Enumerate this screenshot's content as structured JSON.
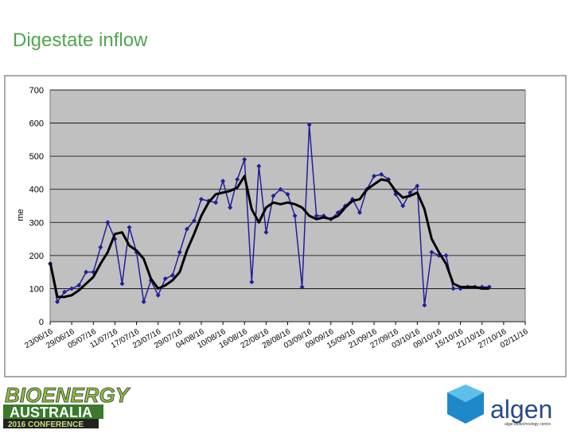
{
  "slide_title": "Digestate inflow",
  "chart_data": {
    "type": "line",
    "y_label": "me",
    "categories": [
      "23/06/16",
      null,
      null,
      "29/06/16",
      null,
      null,
      "05/07/16",
      null,
      null,
      "11/07/16",
      null,
      null,
      "17/07/16",
      null,
      null,
      "23/07/16",
      null,
      null,
      "29/07/16",
      null,
      null,
      "04/08/16",
      null,
      null,
      "10/08/16",
      null,
      null,
      "16/08/16",
      null,
      null,
      "22/08/16",
      null,
      null,
      "28/08/16",
      null,
      null,
      "03/09/16",
      null,
      null,
      "09/09/16",
      null,
      null,
      "15/09/16",
      null,
      null,
      "21/09/16",
      null,
      null,
      "27/09/16",
      null,
      null,
      "03/10/16",
      null,
      null,
      "09/10/16",
      null,
      null,
      "15/10/16",
      null,
      null,
      "21/10/16",
      null,
      null,
      "27/10/16",
      null,
      null,
      "02/11/16"
    ],
    "series": [
      {
        "color": "#1f1f9a",
        "markers": true,
        "width": 1.5,
        "values": [
          175,
          60,
          90,
          100,
          110,
          150,
          150,
          225,
          300,
          250,
          115,
          285,
          210,
          60,
          125,
          80,
          130,
          140,
          210,
          280,
          305,
          370,
          365,
          360,
          425,
          345,
          430,
          490,
          120,
          470,
          270,
          380,
          400,
          385,
          320,
          105,
          595,
          320,
          320,
          310,
          330,
          350,
          370,
          330,
          400,
          440,
          445,
          430,
          385,
          350,
          390,
          410,
          50,
          210,
          200,
          200,
          100,
          100,
          105,
          105,
          105,
          105,
          null,
          null,
          null,
          null,
          null
        ]
      },
      {
        "color": "#000000",
        "markers": false,
        "width": 3,
        "values": [
          180,
          75,
          75,
          80,
          95,
          115,
          135,
          175,
          210,
          265,
          270,
          230,
          215,
          190,
          130,
          100,
          110,
          125,
          150,
          215,
          265,
          320,
          360,
          385,
          390,
          395,
          405,
          440,
          340,
          300,
          345,
          360,
          355,
          360,
          355,
          345,
          320,
          310,
          315,
          310,
          320,
          345,
          365,
          370,
          400,
          415,
          430,
          425,
          395,
          375,
          380,
          390,
          340,
          250,
          210,
          175,
          115,
          105,
          105,
          105,
          100,
          100,
          null,
          null,
          null,
          null,
          null
        ]
      }
    ],
    "ylim": [
      0,
      700
    ],
    "yticks": [
      0,
      100,
      200,
      300,
      400,
      500,
      600,
      700
    ],
    "grid": true,
    "plot_background": "#c0c0c0"
  },
  "logos": {
    "left": [
      "BIOENERGY",
      "AUSTRALIA",
      "2016 CONFERENCE"
    ],
    "right": [
      "algen",
      "algal biotechnology centre"
    ]
  }
}
